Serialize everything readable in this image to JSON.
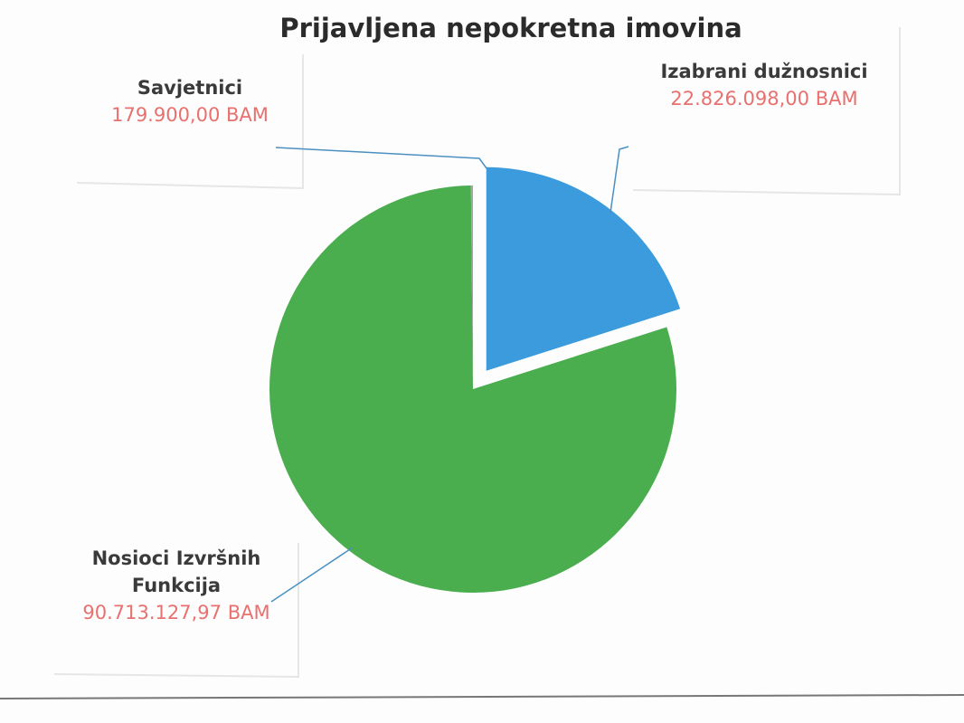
{
  "chart_data": {
    "type": "pie",
    "title": "Prijavljena nepokretna imovina",
    "categories": [
      "Izabrani dužnosnici",
      "Nosioci Izvršnih Funkcija",
      "Savjetnici"
    ],
    "values": [
      22826098,
      90713127.97,
      179900
    ],
    "value_labels": [
      "22.826.098,00 BAM",
      "90.713.127,97 BAM",
      "179.900,00 BAM"
    ],
    "colors": [
      "#3b9bdc",
      "#4aad4e",
      "#a5a5a5"
    ]
  }
}
